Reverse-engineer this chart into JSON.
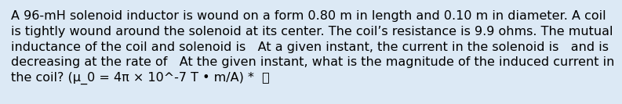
{
  "text": "A 96-mH solenoid inductor is wound on a form 0.80 m in length and 0.10 m in diameter. A coil\nis tightly wound around the solenoid at its center. The coil’s resistance is 9.9 ohms. The mutual\ninductance of the coil and solenoid is   At a given instant, the current in the solenoid is   and is\ndecreasing at the rate of   At the given instant, what is the magnitude of the induced current in\nthe coil? (μ_0 = 4π × 10^-7 T • m/A) *  ",
  "background_color": "#dce9f5",
  "text_color": "#000000",
  "font_size": 11.5,
  "fig_width": 7.39,
  "fig_height": 1.2
}
